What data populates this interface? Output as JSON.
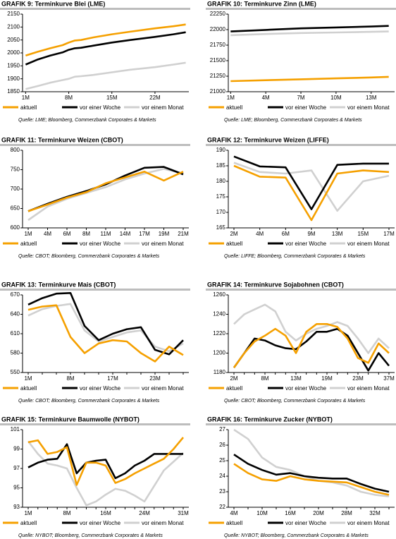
{
  "chart_data": [
    {
      "type": "line",
      "title": "GRAFIK 9: Terminkurve Blei (LME)",
      "source": "Quelle: LME; Bloomberg, Commerzbank Corporates & Markets",
      "x": [
        1,
        3,
        5,
        7,
        8,
        9,
        10,
        12,
        15,
        18,
        22,
        25,
        27
      ],
      "xlim": [
        0.5,
        27.5
      ],
      "xticks": [
        {
          "value": 1,
          "label": "1M"
        },
        {
          "value": 8,
          "label": "8M"
        },
        {
          "value": 15,
          "label": "15M"
        },
        {
          "value": 22,
          "label": "22M"
        }
      ],
      "ylim": [
        1850,
        2150
      ],
      "yticks": [
        1850,
        1900,
        1950,
        2000,
        2050,
        2100,
        2150
      ],
      "series": [
        {
          "name": "aktuell",
          "color": "#f5a000",
          "values": [
            1990,
            2005,
            2018,
            2030,
            2040,
            2048,
            2050,
            2060,
            2072,
            2082,
            2095,
            2103,
            2110
          ]
        },
        {
          "name": "vor einer Woche",
          "color": "#000000",
          "values": [
            1955,
            1975,
            1990,
            2002,
            2012,
            2018,
            2020,
            2028,
            2040,
            2050,
            2062,
            2072,
            2080
          ]
        },
        {
          "name": "vor einem Monat",
          "color": "#d0d0d0",
          "values": [
            1860,
            1872,
            1885,
            1895,
            1900,
            1908,
            1910,
            1915,
            1925,
            1935,
            1945,
            1955,
            1962
          ]
        }
      ]
    },
    {
      "type": "line",
      "title": "GRAFIK 10: Terminkurve Zinn (LME)",
      "source": "Quelle: LME; Bloomberg, Commerzbank Corporates & Markets",
      "x": [
        1,
        4,
        7,
        10,
        13,
        14.5
      ],
      "xlim": [
        0.8,
        15
      ],
      "xticks": [
        {
          "value": 1,
          "label": "1M"
        },
        {
          "value": 4,
          "label": "4M"
        },
        {
          "value": 7,
          "label": "7M"
        },
        {
          "value": 10,
          "label": "10M"
        },
        {
          "value": 13,
          "label": "13M"
        }
      ],
      "ylim": [
        21000,
        22250
      ],
      "yticks": [
        21000,
        21250,
        21500,
        21750,
        22000,
        22250
      ],
      "series": [
        {
          "name": "aktuell",
          "color": "#f5a000",
          "values": [
            21170,
            21185,
            21200,
            21215,
            21230,
            21240
          ]
        },
        {
          "name": "vor einer Woche",
          "color": "#000000",
          "values": [
            21970,
            21995,
            22020,
            22035,
            22050,
            22060
          ]
        },
        {
          "name": "vor einem Monat",
          "color": "#d0d0d0",
          "values": [
            21910,
            21930,
            21945,
            21955,
            21965,
            21970
          ]
        }
      ]
    },
    {
      "type": "line",
      "title": "GRAFIK 11: Terminkurve Weizen (CBOT)",
      "source": "Quelle: CBOT; Bloomberg, Commerzbank Corporates & Markets",
      "categories": [
        "1M",
        "4M",
        "6M",
        "8M",
        "11M",
        "14M",
        "17M",
        "19M",
        "21M"
      ],
      "ylim": [
        600,
        800
      ],
      "yticks": [
        600,
        650,
        700,
        750,
        800
      ],
      "series": [
        {
          "name": "aktuell",
          "color": "#f5a000",
          "values": [
            643,
            660,
            678,
            692,
            715,
            730,
            745,
            722,
            745
          ]
        },
        {
          "name": "vor einer Woche",
          "color": "#000000",
          "values": [
            643,
            662,
            680,
            695,
            712,
            735,
            755,
            757,
            738
          ]
        },
        {
          "name": "vor einem Monat",
          "color": "#d0d0d0",
          "values": [
            620,
            655,
            675,
            690,
            705,
            725,
            740,
            752,
            740
          ]
        }
      ]
    },
    {
      "type": "line",
      "title": "GRAFIK 12: Terminkurve Weizen (LIFFE)",
      "source": "Quelle: LIFFE; Bloomberg, Commerzbank Corporates & Markets",
      "categories": [
        "2M",
        "4M",
        "6M",
        "9M",
        "13M",
        "15M",
        "17M"
      ],
      "ylim": [
        165,
        190
      ],
      "yticks": [
        165,
        170,
        175,
        180,
        185,
        190
      ],
      "series": [
        {
          "name": "aktuell",
          "color": "#f5a000",
          "values": [
            185,
            181.5,
            181.2,
            167.5,
            182.5,
            183.5,
            183
          ]
        },
        {
          "name": "vor einer Woche",
          "color": "#000000",
          "values": [
            188,
            184.8,
            184.5,
            171,
            185.3,
            185.7,
            185.7
          ]
        },
        {
          "name": "vor einem Monat",
          "color": "#d0d0d0",
          "values": [
            186,
            183,
            182.5,
            183.5,
            170.5,
            180,
            181.8
          ]
        }
      ]
    },
    {
      "type": "line",
      "title": "GRAFIK 13: Terminkurve Mais (CBOT)",
      "source": "Quelle: CBOT; Bloomberg, Commerzbank Corporates & Markets",
      "categories": [
        "1M",
        null,
        null,
        "8M",
        null,
        null,
        "17M",
        null,
        null,
        "23M",
        null,
        null
      ],
      "ylim": [
        550,
        670
      ],
      "yticks": [
        550,
        580,
        610,
        640,
        670
      ],
      "series": [
        {
          "name": "aktuell",
          "color": "#f5a000",
          "values": [
            647,
            652,
            654,
            605,
            580,
            595,
            600,
            598,
            580,
            567,
            590,
            577
          ]
        },
        {
          "name": "vor einer Woche",
          "color": "#000000",
          "values": [
            655,
            665,
            672,
            673,
            622,
            600,
            610,
            617,
            620,
            585,
            578,
            600
          ]
        },
        {
          "name": "vor einem Monat",
          "color": "#d0d0d0",
          "values": [
            638,
            648,
            653,
            656,
            615,
            598,
            605,
            612,
            615,
            590,
            583,
            595
          ]
        }
      ]
    },
    {
      "type": "line",
      "title": "GRAFIK 14: Terminkurve Sojabohnen (CBOT)",
      "source": "Quelle: CBOT; Bloomberg, Commerzbank Corporates & Markets",
      "categories": [
        "2M",
        null,
        null,
        "8M",
        null,
        null,
        "13M",
        null,
        null,
        "19M",
        null,
        null,
        "23M",
        null,
        null,
        "37M"
      ],
      "ylim": [
        1180,
        1260
      ],
      "yticks": [
        1180,
        1200,
        1220,
        1240,
        1260
      ],
      "series": [
        {
          "name": "aktuell",
          "color": "#f5a000",
          "values": [
            1185,
            1200,
            1212,
            1218,
            1225,
            1218,
            1200,
            1222,
            1230,
            1230,
            1227,
            1215,
            1195,
            1190,
            1210,
            1200
          ]
        },
        {
          "name": "vor einer Woche",
          "color": "#000000",
          "values": [
            1185,
            1200,
            1215,
            1213,
            1208,
            1205,
            1204,
            1212,
            1222,
            1222,
            1225,
            1218,
            1200,
            1182,
            1200,
            1187
          ]
        },
        {
          "name": "vor einem Monat",
          "color": "#d0d0d0",
          "values": [
            1230,
            1240,
            1245,
            1250,
            1243,
            1222,
            1213,
            1220,
            1225,
            1228,
            1232,
            1228,
            1215,
            1200,
            1215,
            1205
          ]
        }
      ]
    },
    {
      "type": "line",
      "title": "GRAFIK 15: Terminkurve Baumwolle (NYBOT)",
      "source": "Quelle: NYBOT; Bloomberg, Commerzbank Corporates & Markets",
      "categories": [
        "1M",
        null,
        null,
        null,
        "8M",
        null,
        null,
        null,
        "16M",
        null,
        null,
        null,
        "24M",
        null,
        null,
        null,
        "31M"
      ],
      "ylim": [
        93,
        101
      ],
      "yticks": [
        93,
        95,
        97,
        99,
        101
      ],
      "series": [
        {
          "name": "aktuell",
          "color": "#f5a000",
          "values": [
            99.7,
            99.9,
            98.5,
            98.7,
            99.2,
            95.3,
            97.6,
            97.6,
            97.3,
            95.5,
            95.9,
            96.5,
            97.0,
            97.5,
            98.0,
            99.0,
            100.2
          ]
        },
        {
          "name": "vor einer Woche",
          "color": "#000000",
          "values": [
            97.1,
            97.6,
            97.9,
            98.0,
            99.5,
            96.5,
            97.6,
            97.8,
            97.9,
            96.0,
            96.5,
            97.3,
            97.8,
            98.5,
            98.5,
            98.5,
            98.5
          ]
        },
        {
          "name": "vor einem Monat",
          "color": "#d0d0d0",
          "values": [
            99.8,
            98.5,
            97.5,
            97.3,
            97.0,
            95.0,
            93.2,
            93.6,
            94.3,
            94.9,
            94.7,
            94.2,
            93.6,
            95.2,
            96.8,
            97.7,
            98.6
          ]
        }
      ]
    },
    {
      "type": "line",
      "title": "GRAFIK 16: Terminkurve Zucker (NYBOT)",
      "source": "Quelle: NYBOT; Bloomberg, Commerzbank Corporates & Markets",
      "categories": [
        "4M",
        null,
        "10M",
        null,
        "16M",
        null,
        "20M",
        null,
        "28M",
        null,
        "32M",
        null
      ],
      "ylim": [
        22,
        27
      ],
      "yticks": [
        22,
        23,
        24,
        25,
        26,
        27
      ],
      "series": [
        {
          "name": "aktuell",
          "color": "#f5a000",
          "values": [
            24.8,
            24.2,
            23.8,
            23.7,
            24.0,
            23.8,
            23.7,
            23.65,
            23.6,
            23.3,
            23.0,
            22.8
          ]
        },
        {
          "name": "vor einer Woche",
          "color": "#000000",
          "values": [
            25.4,
            24.8,
            24.4,
            24.1,
            24.2,
            24.0,
            23.9,
            23.85,
            23.85,
            23.5,
            23.2,
            23.0
          ]
        },
        {
          "name": "vor einem Monat",
          "color": "#d0d0d0",
          "values": [
            27.0,
            26.4,
            25.2,
            24.6,
            24.4,
            24.0,
            23.7,
            23.6,
            23.4,
            23.0,
            22.8,
            22.7
          ]
        }
      ]
    }
  ]
}
